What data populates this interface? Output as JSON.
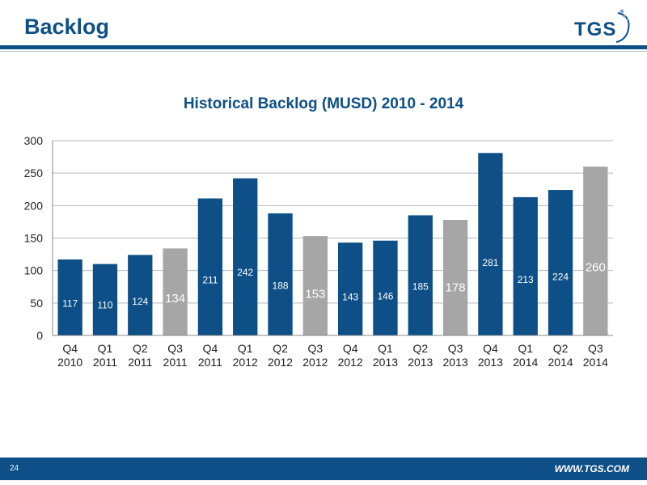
{
  "header": {
    "title": "Backlog",
    "logo_text": "TGS"
  },
  "footer": {
    "page_number": "24",
    "url": "WWW.TGS.COM"
  },
  "colors": {
    "brand_blue": "#0d4f86",
    "forecast_gray": "#a6a6a6"
  },
  "chart_data": {
    "type": "bar",
    "title": "Historical Backlog (MUSD) 2010 - 2014",
    "xlabel": "",
    "ylabel": "",
    "ylim": [
      0,
      300
    ],
    "yticks": [
      0,
      50,
      100,
      150,
      200,
      250,
      300
    ],
    "grid": true,
    "categories": [
      [
        "Q4",
        "2010"
      ],
      [
        "Q1",
        "2011"
      ],
      [
        "Q2",
        "2011"
      ],
      [
        "Q3",
        "2011"
      ],
      [
        "Q4",
        "2011"
      ],
      [
        "Q1",
        "2012"
      ],
      [
        "Q2",
        "2012"
      ],
      [
        "Q3",
        "2012"
      ],
      [
        "Q4",
        "2012"
      ],
      [
        "Q1",
        "2013"
      ],
      [
        "Q2",
        "2013"
      ],
      [
        "Q3",
        "2013"
      ],
      [
        "Q4",
        "2013"
      ],
      [
        "Q1",
        "2014"
      ],
      [
        "Q2",
        "2014"
      ],
      [
        "Q3",
        "2014"
      ]
    ],
    "values": [
      117,
      110,
      124,
      134,
      211,
      242,
      188,
      153,
      143,
      146,
      185,
      178,
      281,
      213,
      224,
      260
    ],
    "highlight_q3": [
      false,
      false,
      false,
      true,
      false,
      false,
      false,
      true,
      false,
      false,
      false,
      true,
      false,
      false,
      false,
      true
    ]
  }
}
